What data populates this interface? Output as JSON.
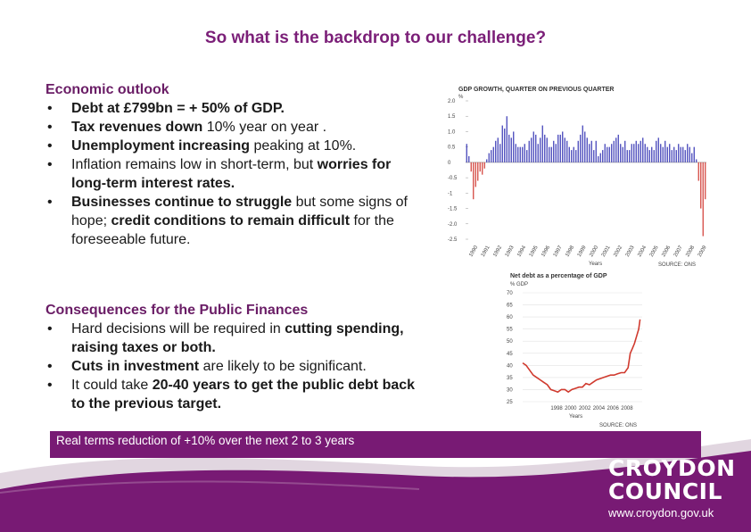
{
  "title": "So what is the backdrop to our challenge?",
  "outlook": {
    "heading": "Economic outlook",
    "bullets": [
      {
        "parts": [
          [
            "Debt at £799bn = + 50% of GDP.",
            true
          ]
        ]
      },
      {
        "parts": [
          [
            "Tax revenues down",
            true
          ],
          [
            " 10% year on year .",
            false
          ]
        ]
      },
      {
        "parts": [
          [
            "Unemployment increasing",
            true
          ],
          [
            " peaking at 10%.",
            false
          ]
        ]
      },
      {
        "parts": [
          [
            "Inflation remains low in short-term, but ",
            false
          ],
          [
            "worries for long-term interest rates.",
            true
          ]
        ]
      },
      {
        "parts": [
          [
            "Businesses continue to struggle",
            true
          ],
          [
            " but some signs of hope; ",
            false
          ],
          [
            "credit conditions to remain difficult",
            true
          ],
          [
            " for the foreseeable future.",
            false
          ]
        ]
      }
    ]
  },
  "consequences": {
    "heading": "Consequences for the Public Finances",
    "bullets": [
      {
        "parts": [
          [
            "Hard decisions will be required in ",
            false
          ],
          [
            "cutting spending, raising taxes or both.",
            true
          ]
        ]
      },
      {
        "parts": [
          [
            "Cuts in investment",
            true
          ],
          [
            " are likely to be significant.",
            false
          ]
        ]
      },
      {
        "parts": [
          [
            "It could take ",
            false
          ],
          [
            "20-40 years to get the public debt back to the previous target.",
            true
          ]
        ]
      }
    ]
  },
  "band_text": "Real terms reduction of +10% over the next 2 to 3 years",
  "logo": {
    "line1": "CROYDON",
    "line2": "COUNCIL",
    "url": "www.croydon.gov.uk"
  },
  "colors": {
    "purple": "#781a74",
    "heading": "#6a1d66",
    "gdp_pos": "#3f3fb8",
    "gdp_neg": "#d2403a",
    "debt_line": "#d03a2e"
  },
  "chart_data": [
    {
      "type": "bar",
      "title": "GDP GROWTH, QUARTER ON PREVIOUS QUARTER",
      "ylabel": "%",
      "xlabel": "Years",
      "source": "SOURCE: ONS",
      "ylim": [
        -2.5,
        2.0
      ],
      "y_ticks": [
        "2.0",
        "1.5",
        "1.0",
        "0.5",
        "0",
        "-0.5",
        "-1",
        "-1.5",
        "-2.0",
        "-2.5"
      ],
      "x_ticks": [
        "1990",
        "1991",
        "1992",
        "1993",
        "1994",
        "1995",
        "1996",
        "1997",
        "1998",
        "1999",
        "2000",
        "2001",
        "2002",
        "2003",
        "2004",
        "2005",
        "2006",
        "2007",
        "2008",
        "2009"
      ],
      "values": [
        0.6,
        0.2,
        -0.3,
        -1.2,
        -0.8,
        -0.6,
        -0.3,
        -0.4,
        -0.2,
        0.1,
        0.3,
        0.4,
        0.5,
        0.7,
        0.8,
        0.6,
        1.2,
        1.1,
        1.5,
        0.9,
        0.8,
        1.0,
        0.6,
        0.5,
        0.5,
        0.5,
        0.6,
        0.4,
        0.7,
        0.8,
        1.0,
        0.9,
        0.6,
        0.8,
        1.2,
        0.9,
        0.8,
        0.5,
        0.5,
        0.7,
        0.6,
        0.9,
        0.9,
        1.0,
        0.8,
        0.7,
        0.5,
        0.4,
        0.5,
        0.4,
        0.7,
        0.9,
        1.2,
        1.0,
        0.8,
        0.6,
        0.7,
        0.4,
        0.7,
        0.2,
        0.3,
        0.4,
        0.6,
        0.5,
        0.5,
        0.6,
        0.7,
        0.8,
        0.9,
        0.6,
        0.5,
        0.7,
        0.4,
        0.4,
        0.6,
        0.6,
        0.7,
        0.6,
        0.7,
        0.8,
        0.6,
        0.5,
        0.4,
        0.5,
        0.4,
        0.7,
        0.8,
        0.6,
        0.5,
        0.7,
        0.5,
        0.6,
        0.4,
        0.5,
        0.4,
        0.6,
        0.5,
        0.5,
        0.4,
        0.6,
        0.5,
        0.3,
        0.5,
        0.1,
        -0.6,
        -1.5,
        -2.4,
        -1.2
      ]
    },
    {
      "type": "line",
      "title": "Net debt as a percentage of GDP",
      "ylabel": "% GDP",
      "xlabel": "Years",
      "source": "SOURCE: ONS",
      "ylim": [
        25,
        70
      ],
      "y_ticks": [
        "70",
        "65",
        "60",
        "55",
        "50",
        "45",
        "40",
        "35",
        "30",
        "25"
      ],
      "x_ticks": [
        "1998",
        "2000",
        "2002",
        "2004",
        "2006",
        "2008"
      ],
      "x": [
        1993.0,
        1993.5,
        1994.0,
        1994.5,
        1995.0,
        1995.5,
        1996.0,
        1996.5,
        1997.0,
        1997.5,
        1998.0,
        1998.5,
        1999.0,
        1999.5,
        2000.0,
        2000.5,
        2001.0,
        2001.5,
        2002.0,
        2002.5,
        2003.0,
        2003.5,
        2004.0,
        2004.5,
        2005.0,
        2005.5,
        2006.0,
        2006.5,
        2007.0,
        2007.5,
        2008.0,
        2008.3,
        2008.6,
        2008.9,
        2009.2,
        2009.5,
        2009.7
      ],
      "y": [
        41,
        40,
        38,
        36,
        35,
        34,
        33,
        32,
        30,
        29.5,
        29,
        30,
        30,
        29,
        30,
        30.5,
        31,
        31,
        32.5,
        32,
        33,
        34,
        34.5,
        35,
        35.5,
        36,
        36,
        36.5,
        37,
        37,
        39,
        45,
        47,
        49,
        52,
        55,
        59
      ]
    }
  ]
}
